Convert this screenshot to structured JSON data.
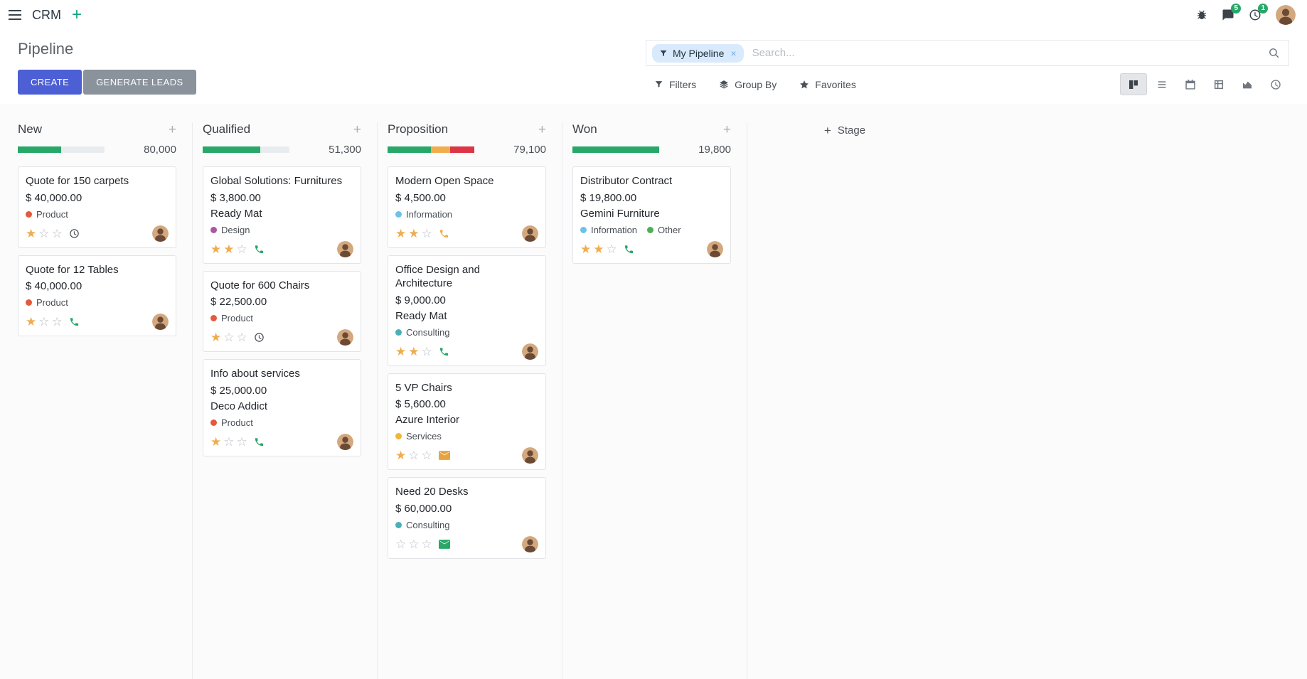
{
  "navbar": {
    "app_name": "CRM",
    "messages_badge": "5",
    "activities_badge": "1"
  },
  "control_panel": {
    "title": "Pipeline",
    "buttons": {
      "create": "CREATE",
      "generate_leads": "GENERATE LEADS"
    },
    "search": {
      "facet": "My Pipeline",
      "facet_remove": "×",
      "placeholder": "Search..."
    },
    "menus": {
      "filters": "Filters",
      "group_by": "Group By",
      "favorites": "Favorites"
    }
  },
  "board": {
    "add_stage": "Stage",
    "columns": [
      {
        "name": "New",
        "total": "80,000",
        "progress": [
          {
            "color": "#28a768",
            "pct": 50
          }
        ],
        "cards": [
          {
            "title": "Quote for 150 carpets",
            "amount": "$ 40,000.00",
            "tags": [
              {
                "label": "Product",
                "color": "#e4593c"
              }
            ],
            "stars": 1,
            "activity": {
              "type": "clock",
              "color": "#495057"
            }
          },
          {
            "title": "Quote for 12 Tables",
            "amount": "$ 40,000.00",
            "tags": [
              {
                "label": "Product",
                "color": "#e4593c"
              }
            ],
            "stars": 1,
            "activity": {
              "type": "phone",
              "color": "#28a768"
            }
          }
        ]
      },
      {
        "name": "Qualified",
        "total": "51,300",
        "progress": [
          {
            "color": "#28a768",
            "pct": 66
          }
        ],
        "cards": [
          {
            "title": "Global Solutions: Furnitures",
            "amount": "$ 3,800.00",
            "partner": "Ready Mat",
            "tags": [
              {
                "label": "Design",
                "color": "#a857a0"
              }
            ],
            "stars": 2,
            "activity": {
              "type": "phone",
              "color": "#28a768"
            }
          },
          {
            "title": "Quote for 600 Chairs",
            "amount": "$ 22,500.00",
            "tags": [
              {
                "label": "Product",
                "color": "#e4593c"
              }
            ],
            "stars": 1,
            "activity": {
              "type": "clock",
              "color": "#495057"
            }
          },
          {
            "title": "Info about services",
            "amount": "$ 25,000.00",
            "partner": "Deco Addict",
            "tags": [
              {
                "label": "Product",
                "color": "#e4593c"
              }
            ],
            "stars": 1,
            "activity": {
              "type": "phone",
              "color": "#28a768"
            }
          }
        ]
      },
      {
        "name": "Proposition",
        "total": "79,100",
        "progress": [
          {
            "color": "#28a768",
            "pct": 50
          },
          {
            "color": "#f0ad4e",
            "pct": 22
          },
          {
            "color": "#dc3545",
            "pct": 28
          }
        ],
        "cards": [
          {
            "title": "Modern Open Space",
            "amount": "$ 4,500.00",
            "tags": [
              {
                "label": "Information",
                "color": "#6ec1ea"
              }
            ],
            "stars": 2,
            "activity": {
              "type": "phone",
              "color": "#f0ad4e"
            }
          },
          {
            "title": "Office Design and Architecture",
            "amount": "$ 9,000.00",
            "partner": "Ready Mat",
            "tags": [
              {
                "label": "Consulting",
                "color": "#49b0b8"
              }
            ],
            "stars": 2,
            "activity": {
              "type": "phone",
              "color": "#28a768"
            }
          },
          {
            "title": "5 VP Chairs",
            "amount": "$ 5,600.00",
            "partner": "Azure Interior",
            "tags": [
              {
                "label": "Services",
                "color": "#f0b53a"
              }
            ],
            "stars": 1,
            "activity": {
              "type": "envelope",
              "color": "#e8a33d"
            }
          },
          {
            "title": "Need 20 Desks",
            "amount": "$ 60,000.00",
            "tags": [
              {
                "label": "Consulting",
                "color": "#49b0b8"
              }
            ],
            "stars": 0,
            "activity": {
              "type": "envelope",
              "color": "#28a768"
            }
          }
        ]
      },
      {
        "name": "Won",
        "total": "19,800",
        "progress": [
          {
            "color": "#28a768",
            "pct": 100
          }
        ],
        "cards": [
          {
            "title": "Distributor Contract",
            "amount": "$ 19,800.00",
            "partner": "Gemini Furniture",
            "tags": [
              {
                "label": "Information",
                "color": "#6ec1ea"
              },
              {
                "label": "Other",
                "color": "#4caf50"
              }
            ],
            "stars": 2,
            "activity": {
              "type": "phone",
              "color": "#28a768"
            }
          }
        ]
      }
    ]
  }
}
